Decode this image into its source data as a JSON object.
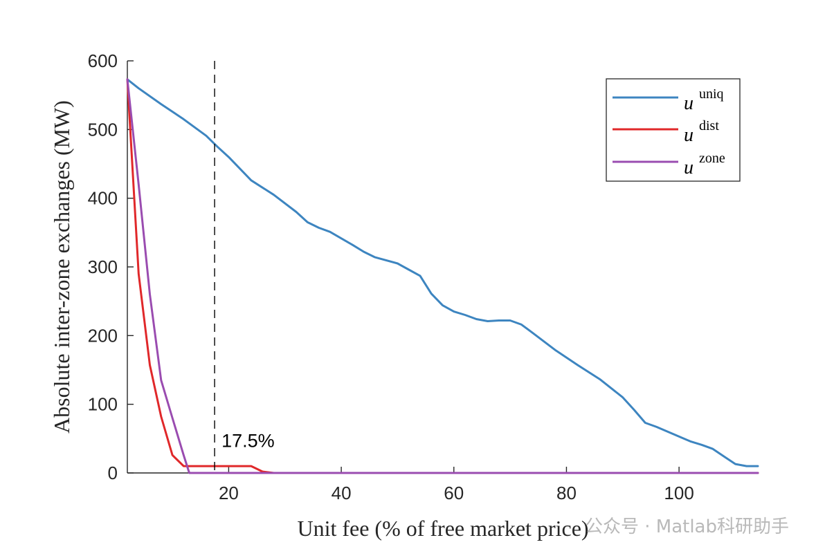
{
  "chart_data": {
    "type": "line",
    "title": "",
    "xlabel": "Unit fee (% of free market price)",
    "ylabel": "Absolute inter-zone exchanges (MW)",
    "xlim": [
      2,
      114
    ],
    "ylim": [
      0,
      600
    ],
    "xticks": [
      20,
      40,
      60,
      80,
      100
    ],
    "yticks": [
      0,
      100,
      200,
      300,
      400,
      500,
      600
    ],
    "grid": false,
    "legend_position": "top-right",
    "vline": {
      "x": 17.5,
      "style": "dashed",
      "label": "17.5%"
    },
    "series": [
      {
        "name": "uniq",
        "color": "#3d85c0",
        "x": [
          2,
          4,
          8,
          12,
          16,
          18,
          20,
          24,
          28,
          32,
          34,
          36,
          38,
          42,
          44,
          46,
          50,
          52,
          54,
          56,
          58,
          60,
          62,
          64,
          66,
          68,
          70,
          72,
          74,
          78,
          82,
          86,
          90,
          92,
          94,
          96,
          98,
          102,
          104,
          106,
          108,
          110,
          112,
          114
        ],
        "y": [
          573,
          560,
          537,
          515,
          491,
          475,
          460,
          426,
          405,
          380,
          365,
          357,
          351,
          332,
          322,
          314,
          305,
          296,
          287,
          261,
          244,
          235,
          230,
          224,
          221,
          222,
          222,
          216,
          204,
          179,
          157,
          136,
          110,
          92,
          73,
          67,
          60,
          46,
          41,
          35,
          24,
          13,
          10,
          10
        ]
      },
      {
        "name": "dist",
        "color": "#e0282a",
        "x": [
          2,
          4,
          6,
          8,
          10,
          12,
          14,
          16,
          18,
          20,
          22,
          24,
          26,
          28,
          30,
          114
        ],
        "y": [
          573,
          290,
          157,
          82,
          26,
          10,
          10,
          10,
          10,
          10,
          10,
          10,
          2,
          0,
          0,
          0
        ]
      },
      {
        "name": "zone",
        "color": "#9a4cb0",
        "x": [
          2,
          4,
          6,
          8,
          10,
          12,
          13,
          14,
          114
        ],
        "y": [
          573,
          420,
          260,
          135,
          80,
          26,
          0,
          0,
          0
        ]
      }
    ]
  },
  "legend": {
    "base_symbol": "u",
    "entries": [
      "uniq",
      "dist",
      "zone"
    ]
  },
  "watermark": "公众号 · Matlab科研助手"
}
